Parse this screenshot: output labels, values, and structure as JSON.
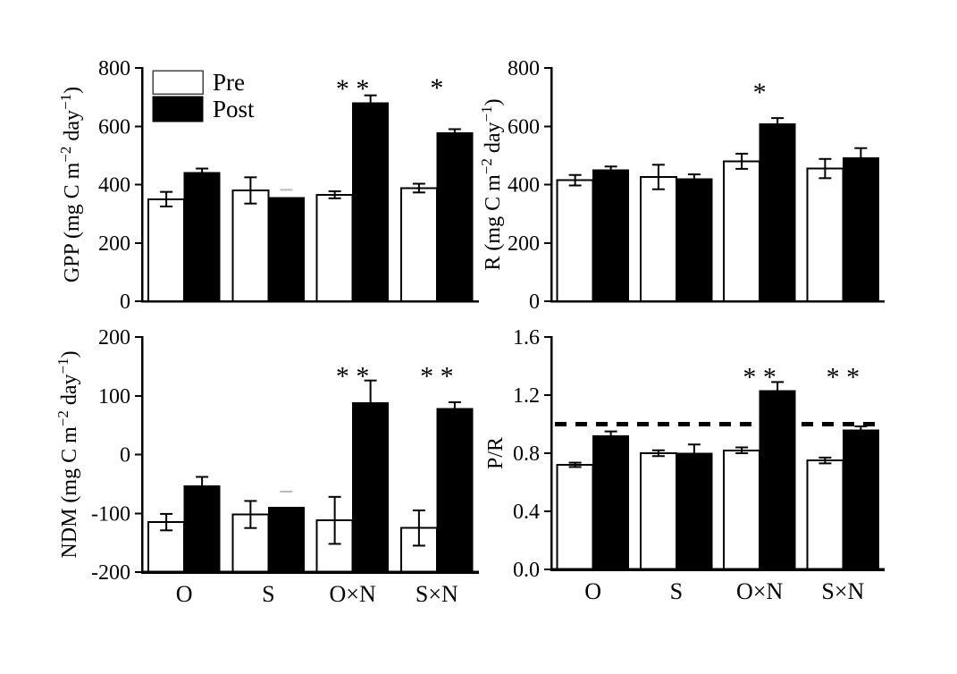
{
  "figure": {
    "background": "#ffffff",
    "bar_colors": {
      "pre": "#ffffff",
      "post": "#000000"
    },
    "categories": [
      "O",
      "S",
      "O×N",
      "S×N"
    ],
    "legend": {
      "items": [
        {
          "label": "Pre",
          "fill": "#ffffff"
        },
        {
          "label": "Post",
          "fill": "#000000"
        }
      ]
    }
  },
  "chart_data": [
    {
      "type": "bar",
      "id": "gpp",
      "ylabel_text": "GPP (mg C m−2 day−1)",
      "ylabel_parts": [
        {
          "t": "GPP (mg C m"
        },
        {
          "t": "−2",
          "sup": true
        },
        {
          "t": " day"
        },
        {
          "t": "−1",
          "sup": true
        },
        {
          "t": ")"
        }
      ],
      "ylim": [
        0,
        800
      ],
      "yticks": [
        {
          "v": 0,
          "label": "0"
        },
        {
          "v": 200,
          "label": "200"
        },
        {
          "v": 400,
          "label": "400"
        },
        {
          "v": 600,
          "label": "600"
        },
        {
          "v": 800,
          "label": "800"
        }
      ],
      "categories": [
        "O",
        "S",
        "O×N",
        "S×N"
      ],
      "series": [
        {
          "name": "Pre",
          "fill": "#ffffff",
          "values": [
            350,
            380,
            365,
            388
          ],
          "errors": [
            25,
            45,
            12,
            15
          ]
        },
        {
          "name": "Post",
          "fill": "#000000",
          "values": [
            442,
            355,
            680,
            578
          ],
          "errors": [
            13,
            27,
            26,
            12
          ],
          "faint_errors": [
            false,
            true,
            false,
            false
          ]
        }
      ],
      "sig": [
        {
          "category": "O×N",
          "text": "* *",
          "at": 742
        },
        {
          "category": "S×N",
          "text": "*",
          "at": 745
        }
      ],
      "show_legend": true,
      "show_x_labels": false
    },
    {
      "type": "bar",
      "id": "r",
      "ylabel_text": "R (mg C m−2 day−1)",
      "ylabel_parts": [
        {
          "t": "R (mg C m"
        },
        {
          "t": "−2",
          "sup": true
        },
        {
          "t": " day"
        },
        {
          "t": "−1",
          "sup": true
        },
        {
          "t": ")"
        }
      ],
      "ylim": [
        0,
        800
      ],
      "yticks": [
        {
          "v": 0,
          "label": "0"
        },
        {
          "v": 200,
          "label": "200"
        },
        {
          "v": 400,
          "label": "400"
        },
        {
          "v": 600,
          "label": "600"
        },
        {
          "v": 800,
          "label": "800"
        }
      ],
      "categories": [
        "O",
        "S",
        "O×N",
        "S×N"
      ],
      "series": [
        {
          "name": "Pre",
          "fill": "#ffffff",
          "values": [
            415,
            426,
            480,
            455
          ],
          "errors": [
            18,
            42,
            26,
            33
          ]
        },
        {
          "name": "Post",
          "fill": "#000000",
          "values": [
            450,
            420,
            608,
            492
          ],
          "errors": [
            12,
            15,
            20,
            33
          ]
        }
      ],
      "sig": [
        {
          "category": "O×N",
          "text": "*",
          "at": 730
        }
      ],
      "show_legend": false,
      "show_x_labels": false
    },
    {
      "type": "bar",
      "id": "ndm",
      "ylabel_text": "NDM (mg C m−2 day−1)",
      "ylabel_parts": [
        {
          "t": "NDM (mg C m"
        },
        {
          "t": "−2",
          "sup": true
        },
        {
          "t": " day"
        },
        {
          "t": "−1",
          "sup": true
        },
        {
          "t": ")"
        }
      ],
      "ylim": [
        -200,
        200
      ],
      "yticks": [
        {
          "v": -200,
          "label": "-200"
        },
        {
          "v": -100,
          "label": "-100"
        },
        {
          "v": 0,
          "label": "0"
        },
        {
          "v": 100,
          "label": "100"
        },
        {
          "v": 200,
          "label": "200"
        }
      ],
      "categories": [
        "O",
        "S",
        "O×N",
        "S×N"
      ],
      "series": [
        {
          "name": "Pre",
          "fill": "#ffffff",
          "values": [
            -115,
            -102,
            -112,
            -125
          ],
          "errors": [
            14,
            23,
            40,
            30
          ]
        },
        {
          "name": "Post",
          "fill": "#000000",
          "values": [
            -53,
            -90,
            88,
            78
          ],
          "errors": [
            15,
            27,
            38,
            11
          ],
          "faint_errors": [
            false,
            true,
            false,
            false
          ]
        }
      ],
      "sig": [
        {
          "category": "O×N",
          "text": "* *",
          "at": 140
        },
        {
          "category": "S×N",
          "text": "* *",
          "at": 140
        }
      ],
      "show_legend": false,
      "show_x_labels": true
    },
    {
      "type": "bar",
      "id": "pr",
      "ylabel_text": "P/R",
      "ylabel_parts": [
        {
          "t": "P/R"
        }
      ],
      "ylim": [
        0,
        1.6
      ],
      "yticks": [
        {
          "v": 0,
          "label": "0.0"
        },
        {
          "v": 0.4,
          "label": "0.4"
        },
        {
          "v": 0.8,
          "label": "0.8"
        },
        {
          "v": 1.2,
          "label": "1.2"
        },
        {
          "v": 1.6,
          "label": "1.6"
        }
      ],
      "categories": [
        "O",
        "S",
        "O×N",
        "S×N"
      ],
      "series": [
        {
          "name": "Pre",
          "fill": "#ffffff",
          "values": [
            0.72,
            0.8,
            0.82,
            0.75
          ],
          "errors": [
            0.015,
            0.02,
            0.02,
            0.02
          ]
        },
        {
          "name": "Post",
          "fill": "#000000",
          "values": [
            0.92,
            0.8,
            1.23,
            0.96
          ],
          "errors": [
            0.03,
            0.06,
            0.06,
            0.025
          ]
        }
      ],
      "sig": [
        {
          "category": "O×N",
          "text": "* *",
          "at": 1.35
        },
        {
          "category": "S×N",
          "text": "* *",
          "at": 1.35
        }
      ],
      "refline": 1.0,
      "show_legend": false,
      "show_x_labels": true
    }
  ]
}
